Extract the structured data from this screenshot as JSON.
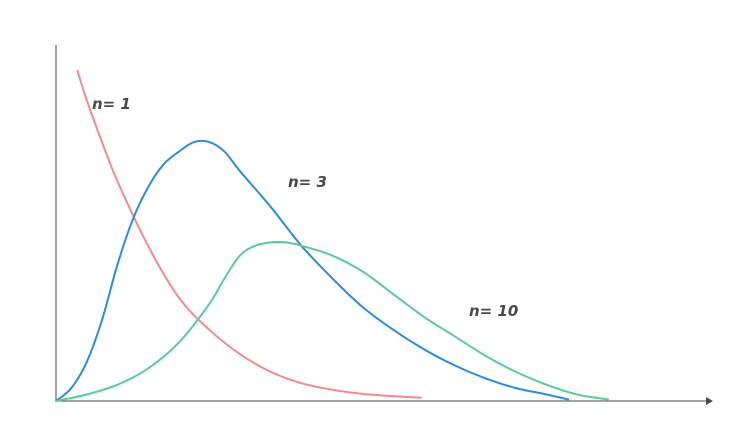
{
  "chart_data": {
    "type": "line",
    "title": "",
    "xlabel": "",
    "ylabel": "",
    "grid": false,
    "legend": "none",
    "series": [
      {
        "name": "n= 1",
        "color": "#f28b8b",
        "points": [
          [
            0.7,
            1.02
          ],
          [
            1.0,
            0.93
          ],
          [
            1.5,
            0.8
          ],
          [
            2,
            0.68
          ],
          [
            3,
            0.48
          ],
          [
            4,
            0.32
          ],
          [
            5,
            0.22
          ],
          [
            6,
            0.145
          ],
          [
            7,
            0.09
          ],
          [
            8,
            0.055
          ],
          [
            9,
            0.035
          ],
          [
            10,
            0.022
          ],
          [
            11,
            0.015
          ],
          [
            11.9,
            0.01
          ]
        ]
      },
      {
        "name": "n= 3",
        "color": "#2f8bdc",
        "points": [
          [
            0,
            0
          ],
          [
            0.5,
            0.04
          ],
          [
            1,
            0.12
          ],
          [
            1.5,
            0.25
          ],
          [
            2,
            0.42
          ],
          [
            2.5,
            0.56
          ],
          [
            3,
            0.66
          ],
          [
            3.5,
            0.73
          ],
          [
            4,
            0.77
          ],
          [
            4.5,
            0.8
          ],
          [
            5,
            0.8
          ],
          [
            5.5,
            0.77
          ],
          [
            6,
            0.71
          ],
          [
            7,
            0.6
          ],
          [
            8,
            0.48
          ],
          [
            9,
            0.38
          ],
          [
            10,
            0.29
          ],
          [
            11,
            0.22
          ],
          [
            12,
            0.16
          ],
          [
            13,
            0.11
          ],
          [
            14,
            0.07
          ],
          [
            15,
            0.04
          ],
          [
            16,
            0.02
          ],
          [
            16.7,
            0.005
          ]
        ]
      },
      {
        "name": "n= 10",
        "color": "#5ccb9a",
        "points": [
          [
            0,
            0
          ],
          [
            1,
            0.02
          ],
          [
            2,
            0.05
          ],
          [
            3,
            0.1
          ],
          [
            4,
            0.18
          ],
          [
            5,
            0.3
          ],
          [
            5.5,
            0.38
          ],
          [
            6,
            0.45
          ],
          [
            6.5,
            0.48
          ],
          [
            7,
            0.49
          ],
          [
            7.5,
            0.49
          ],
          [
            8,
            0.48
          ],
          [
            9,
            0.45
          ],
          [
            10,
            0.4
          ],
          [
            11,
            0.33
          ],
          [
            12,
            0.26
          ],
          [
            13,
            0.2
          ],
          [
            14,
            0.14
          ],
          [
            15,
            0.09
          ],
          [
            16,
            0.05
          ],
          [
            17,
            0.02
          ],
          [
            18,
            0.005
          ]
        ]
      }
    ],
    "xlim": [
      0,
      21
    ],
    "ylim": [
      0,
      1.1
    ]
  }
}
